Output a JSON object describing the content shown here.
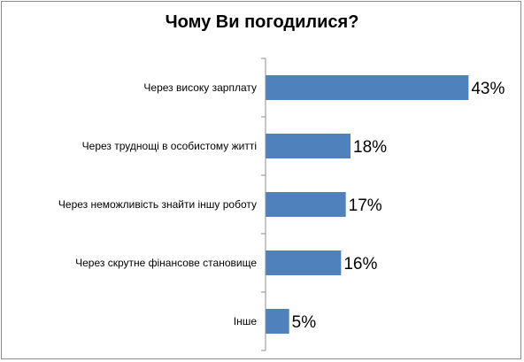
{
  "chart_data": {
    "type": "bar",
    "orientation": "horizontal",
    "title": "Чому Ви погодилися?",
    "categories": [
      "Через високу зарплату",
      "Через труднощі в особистому житті",
      "Через неможливість знайти іншу роботу",
      "Через скрутне фінансове становище",
      "Інше"
    ],
    "values": [
      43,
      18,
      17,
      16,
      5
    ],
    "value_labels": [
      "43%",
      "18%",
      "17%",
      "16%",
      "5%"
    ],
    "xlim": [
      0,
      45
    ],
    "grid": false,
    "legend": "none",
    "bar_color": "#4f81bd"
  }
}
